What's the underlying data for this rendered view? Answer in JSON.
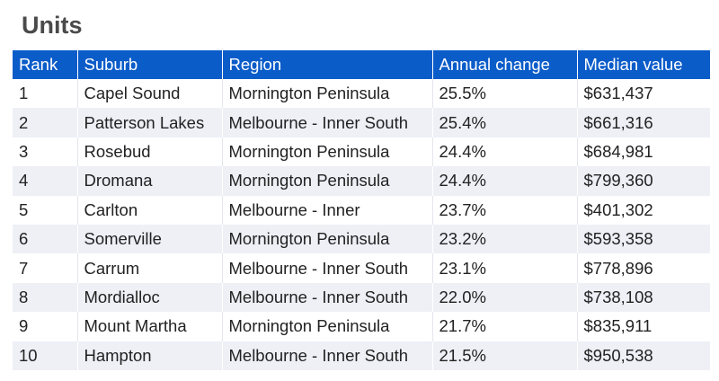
{
  "heading": "Units",
  "table": {
    "headers": [
      "Rank",
      "Suburb",
      "Region",
      "Annual change",
      "Median value"
    ],
    "rows": [
      [
        "1",
        "Capel Sound",
        "Mornington Peninsula",
        "25.5%",
        "$631,437"
      ],
      [
        "2",
        "Patterson Lakes",
        "Melbourne - Inner South",
        "25.4%",
        "$661,316"
      ],
      [
        "3",
        "Rosebud",
        "Mornington Peninsula",
        "24.4%",
        "$684,981"
      ],
      [
        "4",
        "Dromana",
        "Mornington Peninsula",
        "24.4%",
        "$799,360"
      ],
      [
        "5",
        "Carlton",
        "Melbourne - Inner",
        "23.7%",
        "$401,302"
      ],
      [
        "6",
        "Somerville",
        "Mornington Peninsula",
        "23.2%",
        "$593,358"
      ],
      [
        "7",
        "Carrum",
        "Melbourne - Inner South",
        "23.1%",
        "$778,896"
      ],
      [
        "8",
        "Mordialloc",
        "Melbourne - Inner South",
        "22.0%",
        "$738,108"
      ],
      [
        "9",
        "Mount Martha",
        "Mornington Peninsula",
        "21.7%",
        "$835,911"
      ],
      [
        "10",
        "Hampton",
        "Melbourne - Inner South",
        "21.5%",
        "$950,538"
      ]
    ]
  },
  "colors": {
    "header_background": "#0a5cc9",
    "header_text": "#ffffff",
    "stripe_background": "#eef0f6",
    "heading_text": "#4a4a4a"
  }
}
